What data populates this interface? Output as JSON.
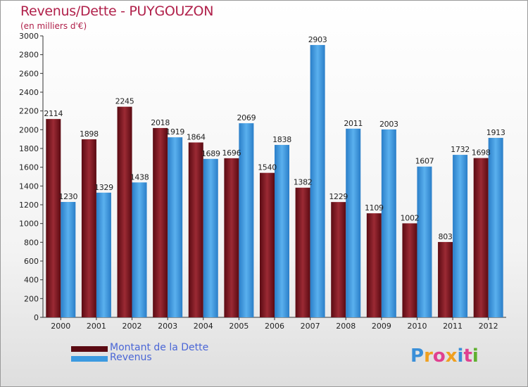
{
  "chart_data": {
    "type": "bar",
    "title": "Revenus/Dette - PUYGOUZON",
    "subtitle": "(en milliers d'€)",
    "categories": [
      "2000",
      "2001",
      "2002",
      "2003",
      "2004",
      "2005",
      "2006",
      "2007",
      "2008",
      "2009",
      "2010",
      "2011",
      "2012"
    ],
    "series": [
      {
        "name": "Montant de la Dette",
        "color": "#7a1420",
        "values": [
          2114,
          1898,
          2245,
          2018,
          1864,
          1696,
          1540,
          1382,
          1229,
          1109,
          1002,
          803,
          1698
        ]
      },
      {
        "name": "Revenus",
        "color": "#3c9ae0",
        "values": [
          1230,
          1329,
          1438,
          1919,
          1689,
          2069,
          1838,
          2903,
          2011,
          2003,
          1607,
          1732,
          1913
        ]
      }
    ],
    "ylim": [
      0,
      3000
    ],
    "yticks": [
      0,
      200,
      400,
      600,
      800,
      1000,
      1200,
      1400,
      1600,
      1800,
      2000,
      2200,
      2400,
      2600,
      2800,
      3000
    ],
    "legend_position": "bottom-left",
    "grid": false
  },
  "logo": {
    "letters": [
      "P",
      "r",
      "o",
      "x",
      "i",
      "t",
      "i"
    ],
    "colors": [
      "#3a8fd8",
      "#f0a020",
      "#e04090",
      "#f0a020",
      "#3a8fd8",
      "#e04090",
      "#60b030"
    ]
  }
}
